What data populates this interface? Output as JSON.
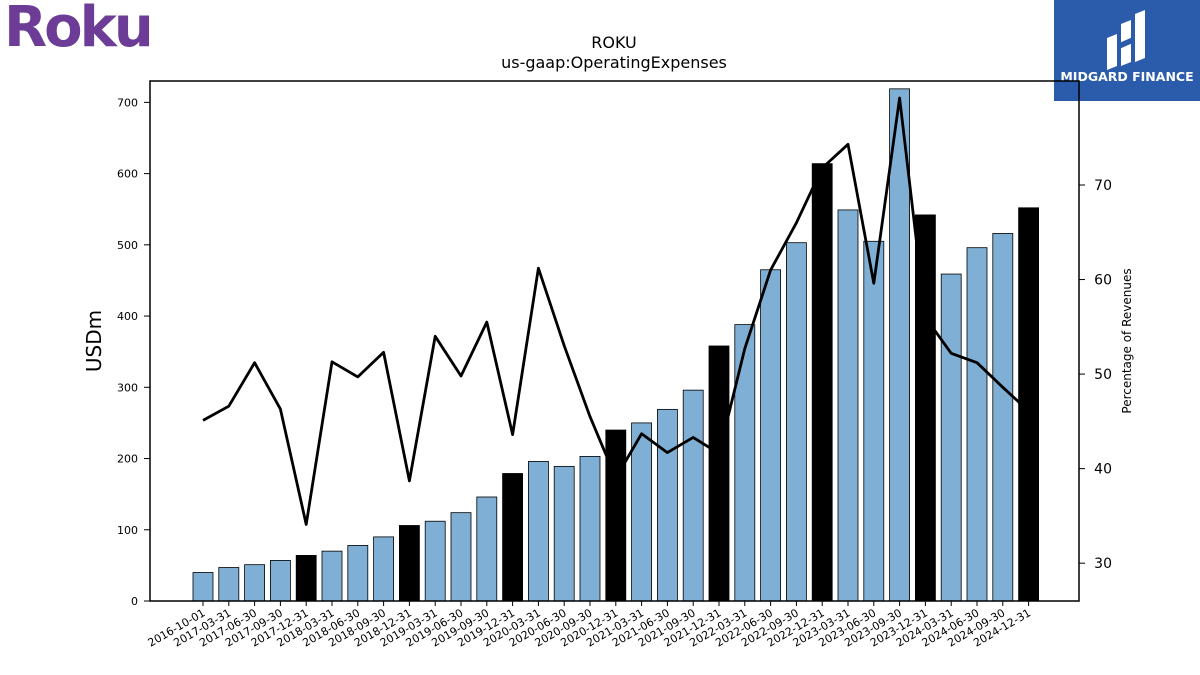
{
  "brand": {
    "company_logo_text": "Roku",
    "publisher_logo_text": "MIDGARD FINANCE"
  },
  "chart_data": {
    "type": "bar",
    "title": "ROKU",
    "subtitle": "us-gaap:OperatingExpenses",
    "ylabel": "USDm",
    "y2label": "Percentage of Revenues",
    "ylim": [
      0,
      730
    ],
    "y2lim": [
      26,
      81
    ],
    "yticks": [
      0,
      100,
      200,
      300,
      400,
      500,
      600,
      700
    ],
    "y2ticks": [
      30,
      40,
      50,
      60,
      70
    ],
    "categories": [
      "2016-10-01",
      "2017-03-31",
      "2017-06-30",
      "2017-09-30",
      "2017-12-31",
      "2018-03-31",
      "2018-06-30",
      "2018-09-30",
      "2018-12-31",
      "2019-03-31",
      "2019-06-30",
      "2019-09-30",
      "2019-12-31",
      "2020-03-31",
      "2020-06-30",
      "2020-09-30",
      "2020-12-31",
      "2021-03-31",
      "2021-06-30",
      "2021-09-30",
      "2021-12-31",
      "2022-03-31",
      "2022-06-30",
      "2022-09-30",
      "2022-12-31",
      "2023-03-31",
      "2023-06-30",
      "2023-09-30",
      "2023-12-31",
      "2024-03-31",
      "2024-06-30",
      "2024-09-30",
      "2024-12-31"
    ],
    "series": [
      {
        "values": [
          40,
          47,
          51,
          57,
          64,
          70,
          78,
          90,
          106,
          112,
          124,
          146,
          179,
          196,
          189,
          203,
          240,
          250,
          269,
          296,
          358,
          388,
          465,
          503,
          614,
          549,
          505,
          719,
          542,
          459,
          496,
          516,
          552
        ],
        "colors": [
          "#7fafd4",
          "#7fafd4",
          "#7fafd4",
          "#7fafd4",
          "#000000",
          "#7fafd4",
          "#7fafd4",
          "#7fafd4",
          "#000000",
          "#7fafd4",
          "#7fafd4",
          "#7fafd4",
          "#000000",
          "#7fafd4",
          "#7fafd4",
          "#7fafd4",
          "#000000",
          "#7fafd4",
          "#7fafd4",
          "#7fafd4",
          "#000000",
          "#7fafd4",
          "#7fafd4",
          "#7fafd4",
          "#000000",
          "#7fafd4",
          "#7fafd4",
          "#7fafd4",
          "#000000",
          "#7fafd4",
          "#7fafd4",
          "#7fafd4",
          "#000000"
        ]
      },
      {
        "axis": "right",
        "type": "line",
        "color": "#000000",
        "values": [
          45.1,
          46.6,
          51.2,
          46.3,
          34.1,
          51.3,
          49.7,
          52.3,
          38.7,
          54.0,
          49.8,
          55.5,
          43.6,
          61.2,
          53.0,
          45.5,
          39.0,
          43.7,
          41.7,
          43.3,
          41.6,
          52.7,
          61.0,
          66.0,
          71.8,
          74.3,
          59.6,
          79.2,
          56.0,
          52.2,
          51.2,
          48.6,
          46.1
        ]
      }
    ],
    "grid": false
  }
}
